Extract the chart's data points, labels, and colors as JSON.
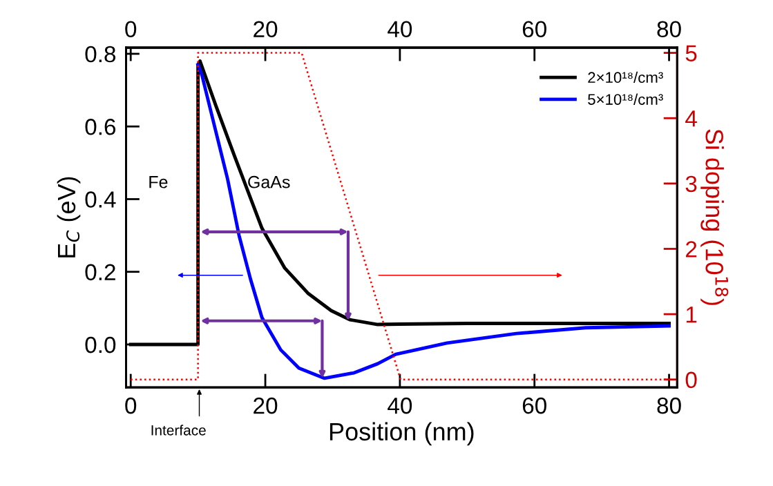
{
  "chart_data": {
    "type": "line",
    "xlabel": "Position (nm)",
    "ylabel": "E$_{C}$ (eV)",
    "y2label": "Si doping (10$^{18}$)",
    "xlim": [
      -0.7,
      81.2
    ],
    "xticks": [
      0,
      20,
      40,
      60,
      80
    ],
    "x2lim": [
      -0.7,
      81.2
    ],
    "x2ticks": [
      0,
      20,
      40,
      60,
      80
    ],
    "ylim": [
      -0.118,
      0.817
    ],
    "yticks": [
      {
        "value": 0,
        "label": "0.0"
      },
      {
        "value": 0.2,
        "label": "0.2"
      },
      {
        "value": 0.4,
        "label": "0.4"
      },
      {
        "value": 0.6,
        "label": "0.6"
      },
      {
        "value": 0.8,
        "label": "0.8"
      }
    ],
    "y2lim": [
      -0.12,
      5.08
    ],
    "y2ticks": [
      0,
      1,
      2,
      3,
      4,
      5
    ],
    "legend": "top right",
    "grid": false,
    "marker": "none",
    "annotations": [
      "Fe",
      "GaAs",
      "Interface"
    ],
    "series": [
      {
        "name": "2×10¹⁸/cm³",
        "color": "#000000",
        "line_style": "solid",
        "x": [
          0,
          10,
          10,
          10.3,
          12.6,
          15.4,
          19.5,
          22.9,
          26.4,
          29.8,
          32.6,
          36.7,
          40,
          50,
          60,
          70,
          80
        ],
        "values": [
          0,
          0,
          0.77,
          0.78,
          0.66,
          0.52,
          0.32,
          0.21,
          0.14,
          0.093,
          0.068,
          0.055,
          0.056,
          0.058,
          0.058,
          0.058,
          0.058
        ]
      },
      {
        "name": "5×10¹⁸/cm³",
        "color": "#0000ff",
        "line_style": "solid",
        "x": [
          10,
          10.6,
          12.6,
          14.4,
          16.1,
          17.8,
          19.5,
          22.3,
          25,
          28.8,
          33.2,
          36.7,
          39.4,
          47,
          57.3,
          67.6,
          80
        ],
        "values": [
          0.77,
          0.74,
          0.59,
          0.455,
          0.3,
          0.18,
          0.074,
          -0.015,
          -0.065,
          -0.093,
          -0.078,
          -0.053,
          -0.027,
          0.004,
          0.03,
          0.046,
          0.051
        ]
      },
      {
        "color": "#ff0000",
        "line_style": "dotted",
        "axis": "y2",
        "x": [
          0,
          10,
          10,
          25.4,
          40.1,
          80
        ],
        "values": [
          0,
          0,
          5,
          5,
          0,
          0
        ]
      }
    ]
  }
}
